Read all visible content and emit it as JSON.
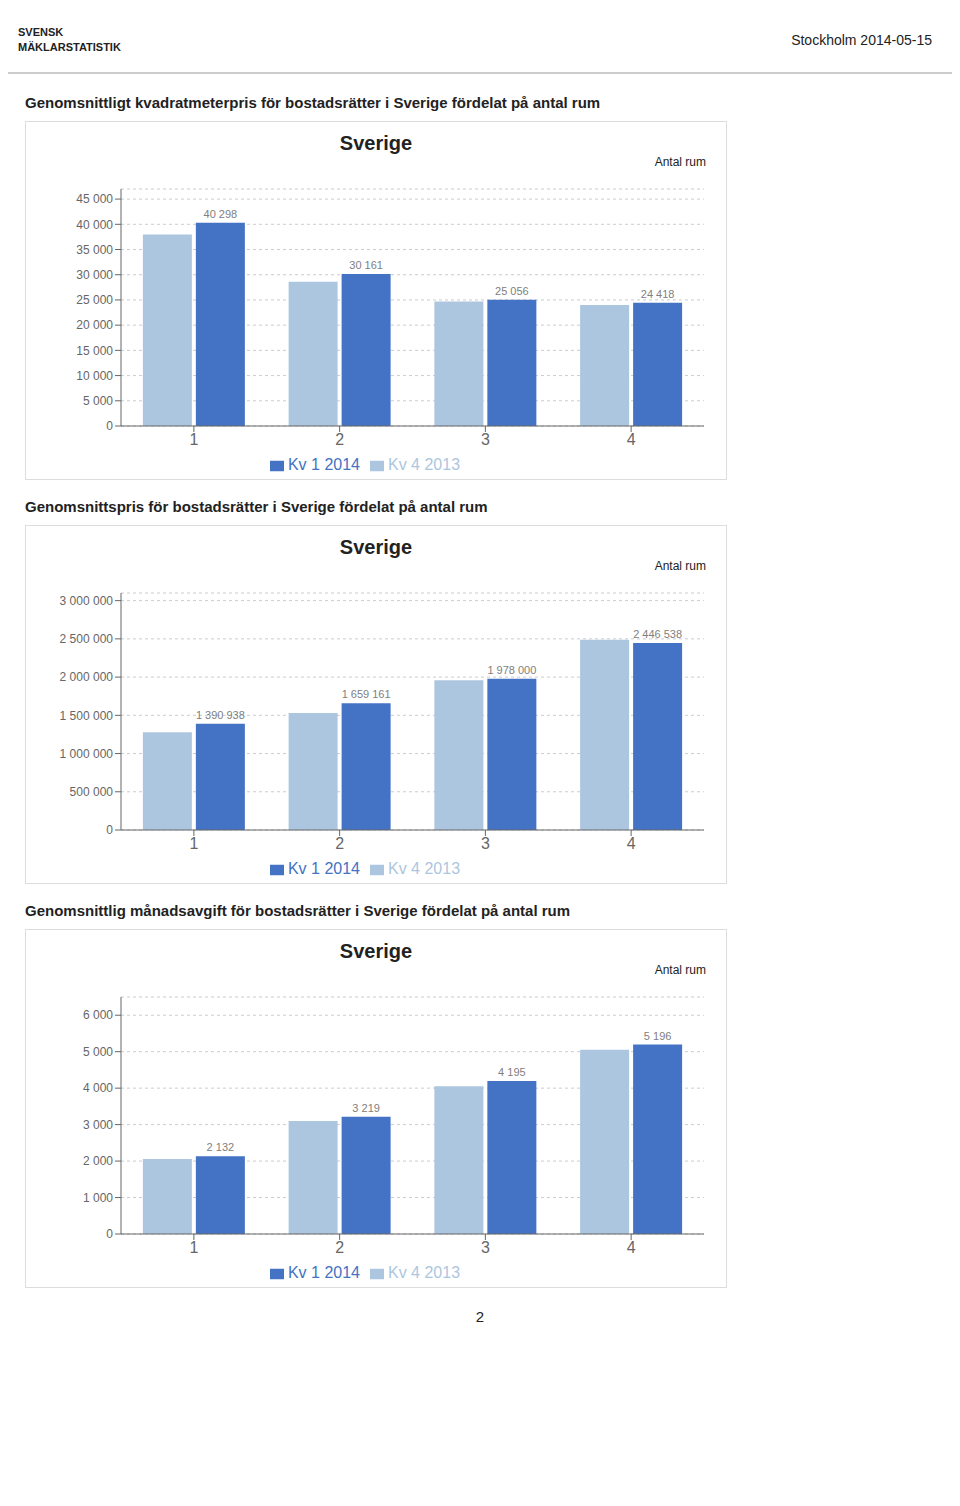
{
  "annotations": [
    "SVENSK\nMÄKLARSTATISTIK",
    "Stockholm 2014-05-15",
    "2"
  ],
  "chart_data": [
    {
      "type": "bar",
      "title": "Genomsnittligt kvadratmeterpris för bostadsrätter i Sverige fördelat på antal rum",
      "subtitle": "Sverige",
      "annotations": [
        "Antal rum"
      ],
      "categories": [
        "1",
        "2",
        "3",
        "4"
      ],
      "series": [
        {
          "name": "Kv 4 2013",
          "color": "#adc6e0",
          "values": [
            38000,
            28600,
            24700,
            24000
          ]
        },
        {
          "name": "Kv 1 2014",
          "color": "#4472c4",
          "values": [
            40298,
            30161,
            25056,
            24418
          ],
          "data_labels": true,
          "value_labels": [
            "40 298",
            "30 161",
            "25 056",
            "24 418"
          ]
        }
      ],
      "ylim": [
        0,
        47000
      ],
      "yticks": [
        0,
        {
          "value": 5000,
          "label": "5 000"
        },
        {
          "value": 10000,
          "label": "10 000"
        },
        {
          "value": 15000,
          "label": "15 000"
        },
        {
          "value": 20000,
          "label": "20 000"
        },
        {
          "value": 25000,
          "label": "25 000"
        },
        {
          "value": 30000,
          "label": "30 000"
        },
        {
          "value": 35000,
          "label": "35 000"
        },
        {
          "value": 40000,
          "label": "40 000"
        },
        {
          "value": 45000,
          "label": "45 000"
        }
      ],
      "grid": true,
      "legend": "bottom"
    },
    {
      "type": "bar",
      "title": "Genomsnittspris för bostadsrätter i Sverige fördelat på antal rum",
      "subtitle": "Sverige",
      "annotations": [
        "Antal rum"
      ],
      "categories": [
        "1",
        "2",
        "3",
        "4"
      ],
      "series": [
        {
          "name": "Kv 4 2013",
          "color": "#adc6e0",
          "values": [
            1280000,
            1530000,
            1960000,
            2490000
          ]
        },
        {
          "name": "Kv 1 2014",
          "color": "#4472c4",
          "values": [
            1390938,
            1659161,
            1978000,
            2446538
          ],
          "data_labels": true,
          "value_labels": [
            "1 390 938",
            "1 659 161",
            "1 978 000",
            "2 446 538"
          ]
        }
      ],
      "ylim": [
        0,
        3100000
      ],
      "yticks": [
        0,
        {
          "value": 500000,
          "label": "500 000"
        },
        {
          "value": 1000000,
          "label": "1 000 000"
        },
        {
          "value": 1500000,
          "label": "1 500 000"
        },
        {
          "value": 2000000,
          "label": "2 000 000"
        },
        {
          "value": 2500000,
          "label": "2 500 000"
        },
        {
          "value": 3000000,
          "label": "3 000 000"
        }
      ],
      "grid": true,
      "legend": "bottom"
    },
    {
      "type": "bar",
      "title": "Genomsnittlig månadsavgift för bostadsrätter i Sverige fördelat på antal rum",
      "subtitle": "Sverige",
      "annotations": [
        "Antal rum"
      ],
      "categories": [
        "1",
        "2",
        "3",
        "4"
      ],
      "series": [
        {
          "name": "Kv 4 2013",
          "color": "#adc6e0",
          "values": [
            2060,
            3100,
            4050,
            5050
          ]
        },
        {
          "name": "Kv 1 2014",
          "color": "#4472c4",
          "values": [
            2132,
            3219,
            4195,
            5196
          ],
          "data_labels": true,
          "value_labels": [
            "2 132",
            "3 219",
            "4 195",
            "5 196"
          ]
        }
      ],
      "ylim": [
        0,
        6500
      ],
      "yticks": [
        0,
        {
          "value": 1000,
          "label": "1 000"
        },
        {
          "value": 2000,
          "label": "2 000"
        },
        {
          "value": 3000,
          "label": "3 000"
        },
        {
          "value": 4000,
          "label": "4 000"
        },
        {
          "value": 5000,
          "label": "5 000"
        },
        {
          "value": 6000,
          "label": "6 000"
        }
      ],
      "grid": true,
      "legend": "bottom"
    }
  ]
}
